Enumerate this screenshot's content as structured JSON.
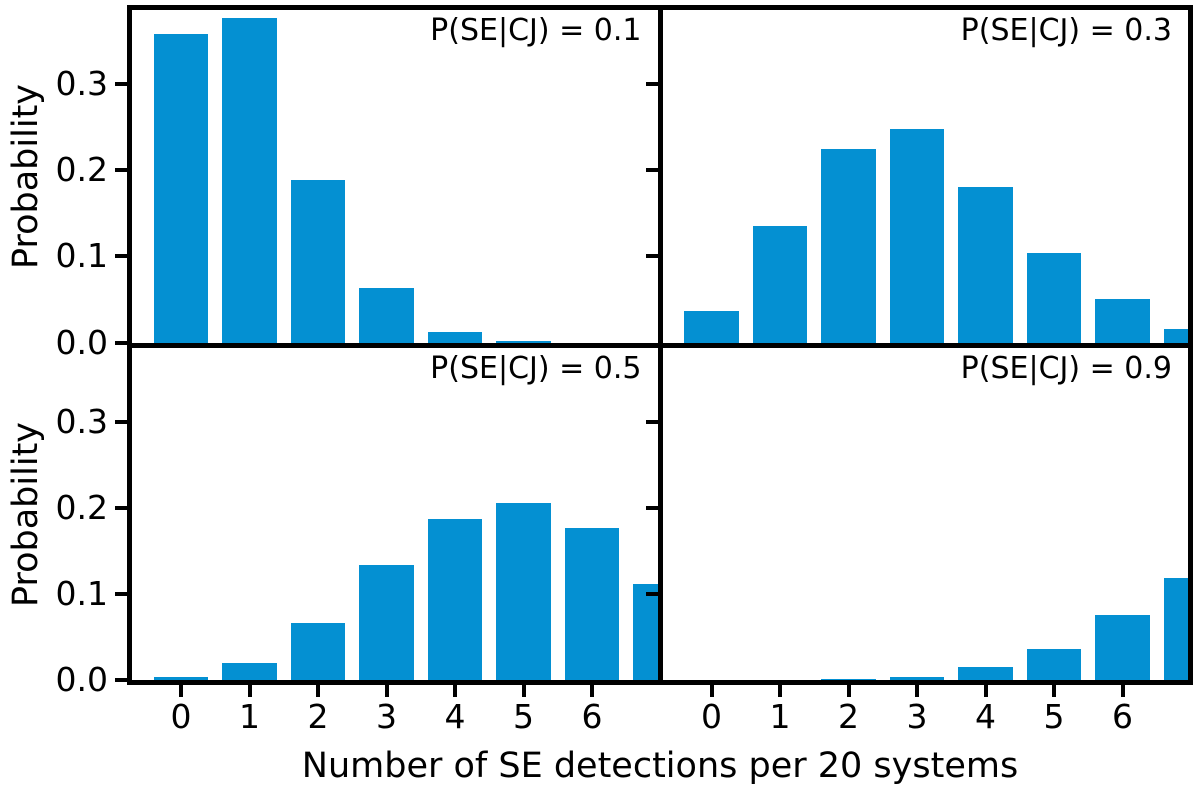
{
  "chart_data": {
    "type": "bar",
    "layout": "2x2-grid-shared-axes",
    "xlabel": "Number of SE detections per 20 systems",
    "ylabel": "Probability",
    "bar_color": "#0490d2",
    "axis_color": "#000000",
    "background_color": "#ffffff",
    "grid": false,
    "legend": "none",
    "bar_width": 0.8,
    "x": [
      0,
      1,
      2,
      3,
      4,
      5,
      6,
      7
    ],
    "xlim": [
      -0.72,
      6.96
    ],
    "ylim": [
      0,
      0.386
    ],
    "x_ticks": {
      "values": [
        0,
        1,
        2,
        3,
        4,
        5,
        6
      ],
      "labels": [
        "0",
        "1",
        "2",
        "3",
        "4",
        "5",
        "6"
      ]
    },
    "y_ticks": {
      "values": [
        0.0,
        0.1,
        0.2,
        0.3
      ],
      "labels": [
        "0.0",
        "0.1",
        "0.2",
        "0.3"
      ]
    },
    "panels": [
      {
        "label": "P(SE|CJ) = 0.1",
        "position": "top-left",
        "values": [
          0.358,
          0.377,
          0.189,
          0.063,
          0.012,
          0.002,
          0.0,
          0.0
        ]
      },
      {
        "label": "P(SE|CJ) = 0.3",
        "position": "top-right",
        "values": [
          0.037,
          0.135,
          0.225,
          0.248,
          0.18,
          0.104,
          0.05,
          0.016
        ]
      },
      {
        "label": "P(SE|CJ) = 0.5",
        "position": "bottom-left",
        "values": [
          0.003,
          0.02,
          0.066,
          0.134,
          0.187,
          0.205,
          0.177,
          0.112
        ]
      },
      {
        "label": "P(SE|CJ) = 0.9",
        "position": "bottom-right",
        "values": [
          0.0,
          0.0,
          0.001,
          0.004,
          0.015,
          0.036,
          0.075,
          0.118
        ]
      }
    ]
  }
}
